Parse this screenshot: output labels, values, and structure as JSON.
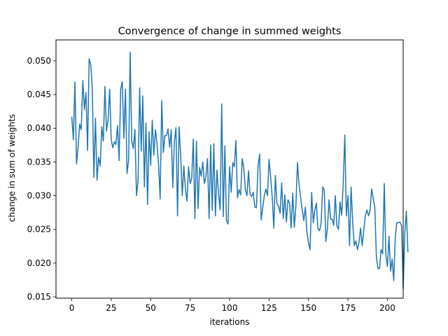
{
  "colors": {
    "line": "#1f77b4",
    "axes": "#000000",
    "background": "#ffffff"
  },
  "chart_data": {
    "type": "line",
    "title": "Convergence of change in summed weights",
    "xlabel": "iterations",
    "ylabel": "change in sum of weights",
    "xlim": [
      -10,
      210
    ],
    "ylim": [
      0.0148,
      0.0531
    ],
    "xticks": [
      0,
      25,
      50,
      75,
      100,
      125,
      150,
      175,
      200
    ],
    "yticks": [
      0.015,
      0.02,
      0.025,
      0.03,
      0.035,
      0.04,
      0.045,
      0.05
    ],
    "ytick_labels": [
      "0.015",
      "0.020",
      "0.025",
      "0.030",
      "0.035",
      "0.040",
      "0.045",
      "0.050"
    ],
    "grid": false,
    "legend": "none",
    "series": [
      {
        "x_start": 0,
        "x_step": 1,
        "values": [
          0.0417,
          0.0383,
          0.0469,
          0.0347,
          0.0372,
          0.0406,
          0.0398,
          0.0471,
          0.0428,
          0.0453,
          0.0367,
          0.0503,
          0.0495,
          0.0459,
          0.0327,
          0.0415,
          0.0323,
          0.0357,
          0.0344,
          0.0402,
          0.0381,
          0.0462,
          0.0396,
          0.0412,
          0.0458,
          0.0383,
          0.0371,
          0.038,
          0.0376,
          0.0404,
          0.0352,
          0.0458,
          0.0469,
          0.0385,
          0.0458,
          0.0333,
          0.0352,
          0.0513,
          0.0381,
          0.037,
          0.0398,
          0.03,
          0.0322,
          0.046,
          0.0366,
          0.0448,
          0.0313,
          0.0408,
          0.0287,
          0.0395,
          0.0345,
          0.0412,
          0.036,
          0.0398,
          0.0377,
          0.0346,
          0.0295,
          0.0441,
          0.0364,
          0.0389,
          0.0389,
          0.0399,
          0.0372,
          0.0398,
          0.0312,
          0.038,
          0.0401,
          0.027,
          0.0402,
          0.0362,
          0.03,
          0.0344,
          0.031,
          0.0292,
          0.0343,
          0.0318,
          0.0326,
          0.0384,
          0.0266,
          0.0381,
          0.0281,
          0.0342,
          0.0329,
          0.035,
          0.0318,
          0.0329,
          0.0355,
          0.0266,
          0.0375,
          0.0278,
          0.0377,
          0.027,
          0.0338,
          0.0303,
          0.0279,
          0.0436,
          0.0269,
          0.0374,
          0.0263,
          0.0258,
          0.0343,
          0.0305,
          0.0349,
          0.0343,
          0.0382,
          0.0297,
          0.0309,
          0.0301,
          0.0355,
          0.034,
          0.0309,
          0.03,
          0.0337,
          0.0302,
          0.0299,
          0.0305,
          0.0283,
          0.0282,
          0.0343,
          0.0362,
          0.0264,
          0.0282,
          0.03,
          0.031,
          0.03,
          0.0354,
          0.0328,
          0.0298,
          0.0252,
          0.033,
          0.0288,
          0.0285,
          0.0274,
          0.0319,
          0.0266,
          0.0301,
          0.0261,
          0.0294,
          0.0289,
          0.0252,
          0.0304,
          0.0253,
          0.0285,
          0.0349,
          0.0317,
          0.0298,
          0.0279,
          0.0263,
          0.0283,
          0.0246,
          0.023,
          0.022,
          0.0305,
          0.026,
          0.0279,
          0.0289,
          0.0251,
          0.0248,
          0.0259,
          0.0313,
          0.0308,
          0.0232,
          0.0252,
          0.0294,
          0.0265,
          0.0265,
          0.0256,
          0.03,
          0.0255,
          0.025,
          0.0291,
          0.0271,
          0.0318,
          0.039,
          0.027,
          0.03,
          0.0226,
          0.0313,
          0.026,
          0.0226,
          0.0233,
          0.022,
          0.0231,
          0.0252,
          0.0226,
          0.0248,
          0.027,
          0.0279,
          0.027,
          0.0278,
          0.031,
          0.0296,
          0.0283,
          0.021,
          0.0192,
          0.0192,
          0.022,
          0.0214,
          0.0318,
          0.0212,
          0.0195,
          0.024,
          0.0188,
          0.0206,
          0.0174,
          0.024,
          0.026,
          0.026,
          0.0261,
          0.0255,
          0.0162,
          0.0243,
          0.0277,
          0.0216
        ]
      }
    ]
  }
}
